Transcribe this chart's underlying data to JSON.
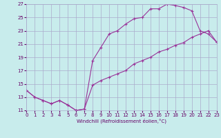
{
  "xlabel": "Windchill (Refroidissement éolien,°C)",
  "background_color": "#c8ecec",
  "grid_color": "#aaaacc",
  "line_color": "#993399",
  "ylim": [
    11,
    27
  ],
  "xlim": [
    0,
    23
  ],
  "yticks": [
    11,
    13,
    15,
    17,
    19,
    21,
    23,
    25,
    27
  ],
  "xticks": [
    0,
    1,
    2,
    3,
    4,
    5,
    6,
    7,
    8,
    9,
    10,
    11,
    12,
    13,
    14,
    15,
    16,
    17,
    18,
    19,
    20,
    21,
    22,
    23
  ],
  "line1_x": [
    0,
    1,
    2,
    3,
    4,
    5,
    6,
    7,
    8,
    9,
    10,
    11,
    12,
    13,
    14,
    15,
    16,
    17,
    18,
    19,
    20,
    21,
    22,
    23
  ],
  "line1_y": [
    14.0,
    13.0,
    12.5,
    12.0,
    12.5,
    11.8,
    11.0,
    11.2,
    18.5,
    20.5,
    22.5,
    23.0,
    24.0,
    24.8,
    25.0,
    26.3,
    26.3,
    27.0,
    26.8,
    26.5,
    26.0,
    23.0,
    22.5,
    21.3
  ],
  "line2_x": [
    0,
    1,
    2,
    3,
    4,
    5,
    6,
    7,
    8,
    9,
    10,
    11,
    12,
    13,
    14,
    15,
    16,
    17,
    18,
    19,
    20,
    21,
    22,
    23
  ],
  "line2_y": [
    14.0,
    13.0,
    12.5,
    12.0,
    12.5,
    11.8,
    11.0,
    11.2,
    14.8,
    15.5,
    16.0,
    16.5,
    17.0,
    18.0,
    18.5,
    19.0,
    19.8,
    20.2,
    20.8,
    21.2,
    22.0,
    22.5,
    23.0,
    21.3
  ],
  "tick_fontsize": 5,
  "xlabel_fontsize": 5,
  "tick_color": "#660066",
  "spine_color": "#aaaacc"
}
